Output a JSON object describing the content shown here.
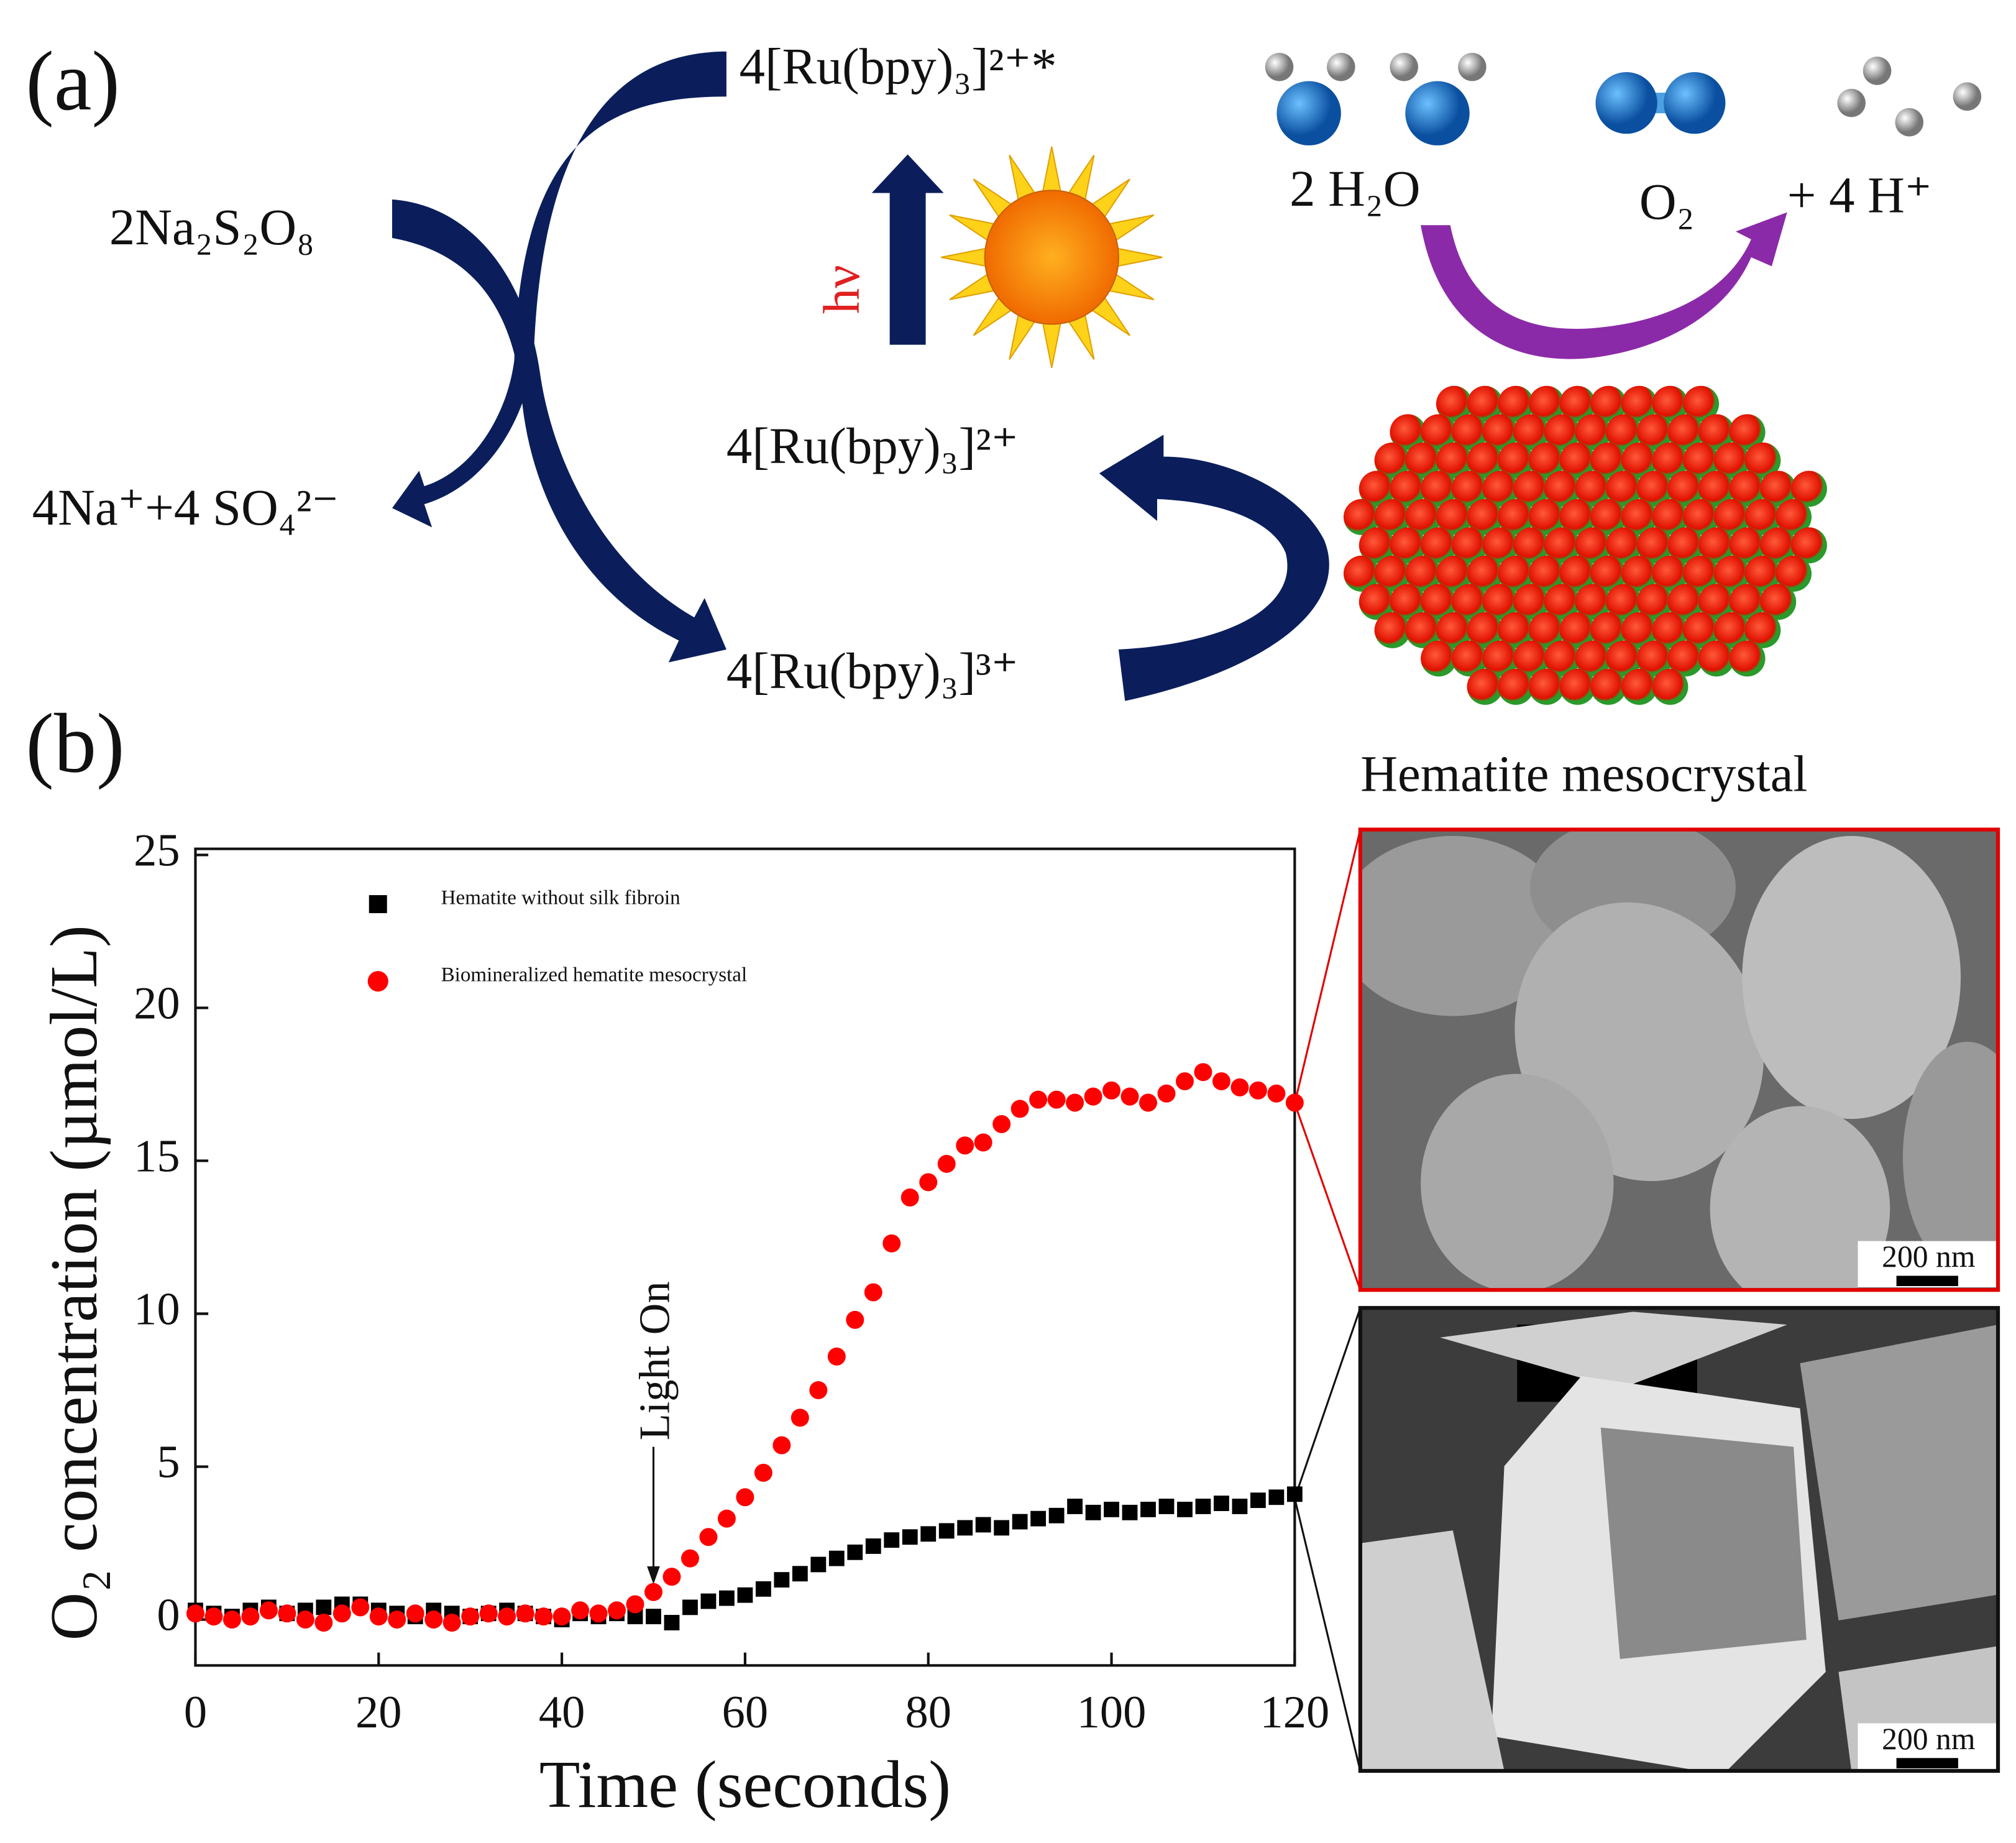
{
  "diagram": {
    "panel_a": "(a)",
    "panel_b": "(b)",
    "persulfate": "2Na₂S₂O₈",
    "ru_excited": "4[Ru(bpy)₃]²⁺*",
    "sulfate": "4Na⁺+4 SO₄²⁻",
    "ru2": "4[Ru(bpy)₃]²⁺",
    "ru3": "4[Ru(bpy)₃]³⁺",
    "hv": "hν",
    "water": "2 H₂O",
    "oxygen": "O₂",
    "protons": "+ 4 H⁺",
    "mesocrystal": "Hematite mesocrystal"
  },
  "sem": {
    "scale_top": "200 nm",
    "scale_bottom": "200 nm"
  },
  "chart_data": {
    "type": "scatter",
    "xlabel": "Time (seconds)",
    "ylabel": "O₂ concentration (µmol/L)",
    "annotation": "Light On",
    "annotation_x": 50,
    "xlim": [
      0,
      120
    ],
    "ylim": [
      -1.5,
      25.2
    ],
    "xticks": [
      0,
      20,
      40,
      60,
      80,
      100,
      120
    ],
    "yticks": [
      0,
      5,
      10,
      15,
      20,
      25
    ],
    "x": [
      0,
      2,
      4,
      6,
      8,
      10,
      12,
      14,
      16,
      18,
      20,
      22,
      24,
      26,
      28,
      30,
      32,
      34,
      36,
      38,
      40,
      42,
      44,
      46,
      48,
      50,
      52,
      54,
      56,
      58,
      60,
      62,
      64,
      66,
      68,
      70,
      72,
      74,
      76,
      78,
      80,
      82,
      84,
      86,
      88,
      90,
      92,
      94,
      96,
      98,
      100,
      102,
      104,
      106,
      108,
      110,
      112,
      114,
      116,
      118,
      120
    ],
    "series": [
      {
        "name": "Hematite without silk fibroin",
        "color": "#000000",
        "marker": "square",
        "values": [
          0.3,
          0.2,
          0.1,
          0.3,
          0.4,
          0.2,
          0.3,
          0.4,
          0.5,
          0.5,
          0.3,
          0.2,
          0.1,
          0.3,
          0.2,
          0.1,
          0.2,
          0.3,
          0.2,
          0.1,
          0.0,
          0.2,
          0.1,
          0.2,
          0.1,
          0.1,
          -0.1,
          0.4,
          0.6,
          0.7,
          0.8,
          1.0,
          1.3,
          1.5,
          1.8,
          2.0,
          2.2,
          2.4,
          2.6,
          2.7,
          2.8,
          2.9,
          3.0,
          3.1,
          3.0,
          3.2,
          3.3,
          3.4,
          3.7,
          3.5,
          3.6,
          3.5,
          3.6,
          3.7,
          3.6,
          3.7,
          3.8,
          3.7,
          3.9,
          4.0,
          4.1
        ]
      },
      {
        "name": "Biomineralized hematite mesocrystal",
        "color": "#ff0000",
        "marker": "circle",
        "values": [
          0.2,
          0.1,
          0.0,
          0.1,
          0.3,
          0.2,
          0.0,
          -0.1,
          0.2,
          0.4,
          0.1,
          0.0,
          0.2,
          0.0,
          -0.1,
          0.1,
          0.2,
          0.1,
          0.2,
          0.1,
          0.1,
          0.3,
          0.2,
          0.3,
          0.5,
          0.9,
          1.4,
          2.0,
          2.7,
          3.3,
          4.0,
          4.8,
          5.7,
          6.6,
          7.5,
          8.6,
          9.8,
          10.7,
          12.3,
          13.8,
          14.3,
          14.9,
          15.5,
          15.6,
          16.2,
          16.7,
          17.0,
          17.0,
          16.9,
          17.1,
          17.3,
          17.1,
          16.9,
          17.2,
          17.6,
          17.9,
          17.6,
          17.4,
          17.3,
          17.2,
          16.9
        ]
      }
    ]
  }
}
